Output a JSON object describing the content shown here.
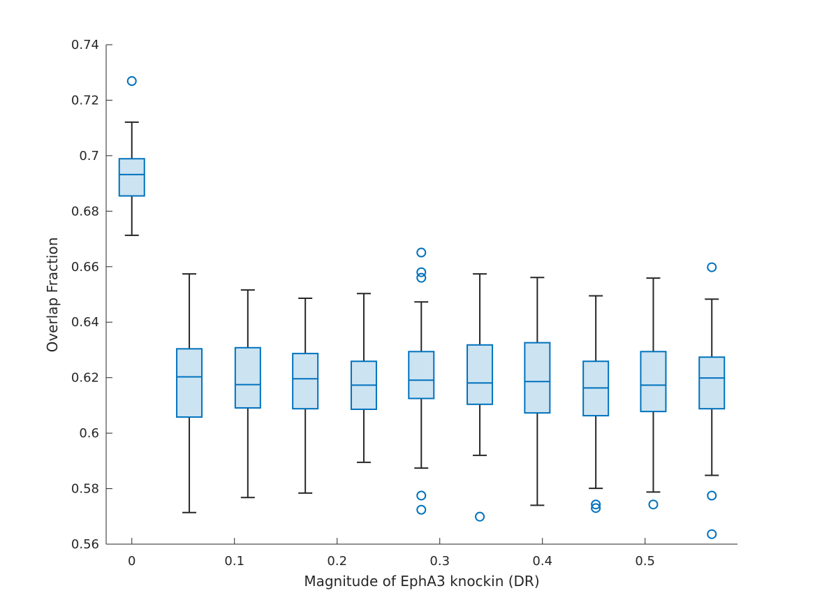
{
  "chart_data": {
    "type": "box",
    "title": "",
    "xlabel": "Magnitude of EphA3 knockin (DR)",
    "ylabel": "Overlap Fraction",
    "xlim": [
      -0.025,
      0.59
    ],
    "ylim": [
      0.56,
      0.74
    ],
    "xticks": [
      0,
      0.1,
      0.2,
      0.3,
      0.4,
      0.5
    ],
    "xtick_labels": [
      "0",
      "0.1",
      "0.2",
      "0.3",
      "0.4",
      "0.5"
    ],
    "yticks": [
      0.56,
      0.58,
      0.6,
      0.62,
      0.64,
      0.66,
      0.68,
      0.7,
      0.72,
      0.74
    ],
    "ytick_labels": [
      "0.56",
      "0.58",
      "0.6",
      "0.62",
      "0.64",
      "0.66",
      "0.68",
      "0.7",
      "0.72",
      "0.74"
    ],
    "grid": false,
    "box_color": "#0072BD",
    "box_fill": "#CCE3F2",
    "whisker_color": "#262626",
    "boxes": [
      {
        "x": 0.0,
        "q1": 0.6855,
        "median": 0.6932,
        "q3": 0.6989,
        "whisker_low": 0.6713,
        "whisker_high": 0.7121,
        "outliers": [
          0.7269
        ]
      },
      {
        "x": 0.056,
        "q1": 0.6058,
        "median": 0.6203,
        "q3": 0.6304,
        "whisker_low": 0.5714,
        "whisker_high": 0.6574,
        "outliers": []
      },
      {
        "x": 0.113,
        "q1": 0.6091,
        "median": 0.6175,
        "q3": 0.6308,
        "whisker_low": 0.5768,
        "whisker_high": 0.6516,
        "outliers": []
      },
      {
        "x": 0.169,
        "q1": 0.6088,
        "median": 0.6196,
        "q3": 0.6287,
        "whisker_low": 0.5784,
        "whisker_high": 0.6486,
        "outliers": []
      },
      {
        "x": 0.226,
        "q1": 0.6086,
        "median": 0.6173,
        "q3": 0.6259,
        "whisker_low": 0.5895,
        "whisker_high": 0.6503,
        "outliers": []
      },
      {
        "x": 0.282,
        "q1": 0.6125,
        "median": 0.6191,
        "q3": 0.6294,
        "whisker_low": 0.5874,
        "whisker_high": 0.6473,
        "outliers": [
          0.6651,
          0.658,
          0.656,
          0.5775,
          0.5724
        ]
      },
      {
        "x": 0.339,
        "q1": 0.6104,
        "median": 0.6181,
        "q3": 0.6318,
        "whisker_low": 0.592,
        "whisker_high": 0.6574,
        "outliers": [
          0.5699
        ]
      },
      {
        "x": 0.395,
        "q1": 0.6073,
        "median": 0.6186,
        "q3": 0.6326,
        "whisker_low": 0.574,
        "whisker_high": 0.6561,
        "outliers": []
      },
      {
        "x": 0.452,
        "q1": 0.6063,
        "median": 0.6163,
        "q3": 0.6259,
        "whisker_low": 0.5801,
        "whisker_high": 0.6495,
        "outliers": [
          0.5743,
          0.573
        ]
      },
      {
        "x": 0.508,
        "q1": 0.6078,
        "median": 0.6173,
        "q3": 0.6294,
        "whisker_low": 0.5788,
        "whisker_high": 0.6559,
        "outliers": [
          0.5743
        ]
      },
      {
        "x": 0.565,
        "q1": 0.6088,
        "median": 0.6199,
        "q3": 0.6274,
        "whisker_low": 0.5848,
        "whisker_high": 0.6483,
        "outliers": [
          0.6598,
          0.5775,
          0.5636
        ]
      }
    ]
  }
}
